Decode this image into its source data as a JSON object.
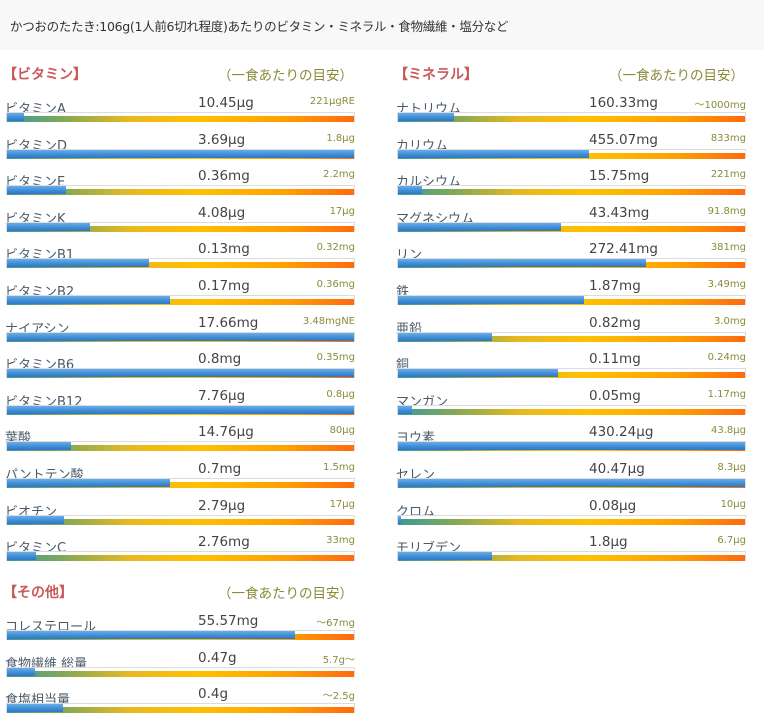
{
  "header": {
    "title": "かつおのたたき:106g(1人前6切れ程度)あたりのビタミン・ミネラル・食物繊維・塩分など"
  },
  "colors": {
    "section_title": "#c9595a",
    "note": "#8a8a3a",
    "fill": "#3d8ad4",
    "gradient_end": "#ff6a10"
  },
  "chart_data": {
    "type": "bar",
    "title": "かつおのたたき:106g(1人前6切れ程度)あたりのビタミン・ミネラル・食物繊維・塩分など",
    "xlabel": "",
    "ylabel": "",
    "ylim": [
      0,
      100
    ],
    "sections": [
      {
        "key": "vitamins",
        "title": "【ビタミン】",
        "note": "（一食あたりの目安）",
        "items": [
          {
            "name": "ビタミンA",
            "amount": "10.45μg",
            "target": "221μgRE",
            "percent": 5
          },
          {
            "name": "ビタミンD",
            "amount": "3.69μg",
            "target": "1.8μg",
            "percent": 100
          },
          {
            "name": "ビタミンE",
            "amount": "0.36mg",
            "target": "2.2mg",
            "percent": 17
          },
          {
            "name": "ビタミンK",
            "amount": "4.08μg",
            "target": "17μg",
            "percent": 24
          },
          {
            "name": "ビタミンB1",
            "amount": "0.13mg",
            "target": "0.32mg",
            "percent": 41
          },
          {
            "name": "ビタミンB2",
            "amount": "0.17mg",
            "target": "0.36mg",
            "percent": 47
          },
          {
            "name": "ナイアシン",
            "amount": "17.66mg",
            "target": "3.48mgNE",
            "percent": 100
          },
          {
            "name": "ビタミンB6",
            "amount": "0.8mg",
            "target": "0.35mg",
            "percent": 100
          },
          {
            "name": "ビタミンB12",
            "amount": "7.76μg",
            "target": "0.8μg",
            "percent": 100
          },
          {
            "name": "葉酸",
            "amount": "14.76μg",
            "target": "80μg",
            "percent": 18.5
          },
          {
            "name": "パントテン酸",
            "amount": "0.7mg",
            "target": "1.5mg",
            "percent": 47
          },
          {
            "name": "ビオチン",
            "amount": "2.79μg",
            "target": "17μg",
            "percent": 16.5
          },
          {
            "name": "ビタミンC",
            "amount": "2.76mg",
            "target": "33mg",
            "percent": 8.5
          }
        ]
      },
      {
        "key": "minerals",
        "title": "【ミネラル】",
        "note": "（一食あたりの目安）",
        "items": [
          {
            "name": "ナトリウム",
            "amount": "160.33mg",
            "target": "～1000mg",
            "percent": 16
          },
          {
            "name": "カリウム",
            "amount": "455.07mg",
            "target": "833mg",
            "percent": 55
          },
          {
            "name": "カルシウム",
            "amount": "15.75mg",
            "target": "221mg",
            "percent": 7
          },
          {
            "name": "マグネシウム",
            "amount": "43.43mg",
            "target": "91.8mg",
            "percent": 47
          },
          {
            "name": "リン",
            "amount": "272.41mg",
            "target": "381mg",
            "percent": 71.5
          },
          {
            "name": "鉄",
            "amount": "1.87mg",
            "target": "3.49mg",
            "percent": 53.5
          },
          {
            "name": "亜鉛",
            "amount": "0.82mg",
            "target": "3.0mg",
            "percent": 27
          },
          {
            "name": "銅",
            "amount": "0.11mg",
            "target": "0.24mg",
            "percent": 46
          },
          {
            "name": "マンガン",
            "amount": "0.05mg",
            "target": "1.17mg",
            "percent": 4
          },
          {
            "name": "ヨウ素",
            "amount": "430.24μg",
            "target": "43.8μg",
            "percent": 100
          },
          {
            "name": "セレン",
            "amount": "40.47μg",
            "target": "8.3μg",
            "percent": 100
          },
          {
            "name": "クロム",
            "amount": "0.08μg",
            "target": "10μg",
            "percent": 1
          },
          {
            "name": "モリブデン",
            "amount": "1.8μg",
            "target": "6.7μg",
            "percent": 27
          }
        ]
      },
      {
        "key": "others",
        "title": "【その他】",
        "note": "（一食あたりの目安）",
        "items": [
          {
            "name": "コレステロール",
            "amount": "55.57mg",
            "target": "～67mg",
            "percent": 83
          },
          {
            "name": "食物繊維 総量",
            "amount": "0.47g",
            "target": "5.7g～",
            "percent": 8
          },
          {
            "name": "食塩相当量",
            "amount": "0.4g",
            "target": "～2.5g",
            "percent": 16
          }
        ]
      }
    ]
  }
}
